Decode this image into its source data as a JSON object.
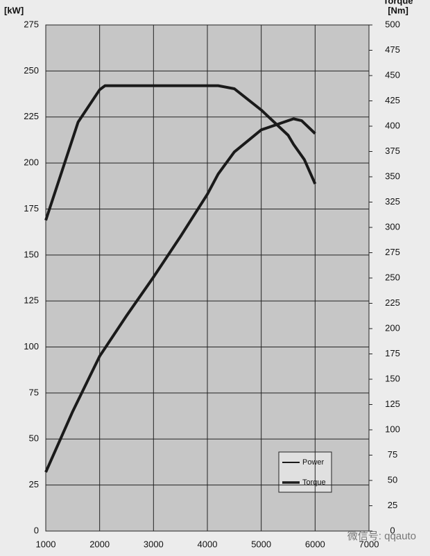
{
  "chart_data": {
    "type": "line",
    "y_unit": "[kW]",
    "y2_title": "Torque",
    "y2_unit": "[Nm]",
    "xlim": [
      1000,
      7000
    ],
    "xticks": [
      1000,
      2000,
      3000,
      4000,
      5000,
      6000,
      7000
    ],
    "ylim": [
      0,
      275
    ],
    "yticks": [
      0,
      25,
      50,
      75,
      100,
      125,
      150,
      175,
      200,
      225,
      250,
      275
    ],
    "y2lim": [
      0,
      500
    ],
    "y2ticks": [
      0,
      25,
      50,
      75,
      100,
      125,
      150,
      175,
      200,
      225,
      250,
      275,
      300,
      325,
      350,
      375,
      400,
      425,
      450,
      475,
      500
    ],
    "grid": true,
    "legend": "lower right",
    "series": [
      {
        "name": "Power",
        "color": "#1a1a1a",
        "x": [
          1000,
          1500,
          2000,
          2500,
          3000,
          3500,
          4000,
          4200,
          4500,
          5000,
          5500,
          5600,
          5750,
          6000
        ],
        "values": [
          32,
          65,
          95,
          117,
          138,
          160,
          183,
          194,
          206,
          218,
          223,
          224,
          223,
          216
        ]
      },
      {
        "name": "Torque",
        "color": "#1a1a1a",
        "axis": "y2",
        "x": [
          1000,
          1600,
          2000,
          2100,
          4200,
          4500,
          5000,
          5500,
          5600,
          5800,
          6000
        ],
        "values": [
          307,
          404,
          436,
          440,
          440,
          437,
          416,
          391,
          382,
          367,
          343
        ]
      }
    ],
    "watermark": "微信号: qqauto"
  }
}
